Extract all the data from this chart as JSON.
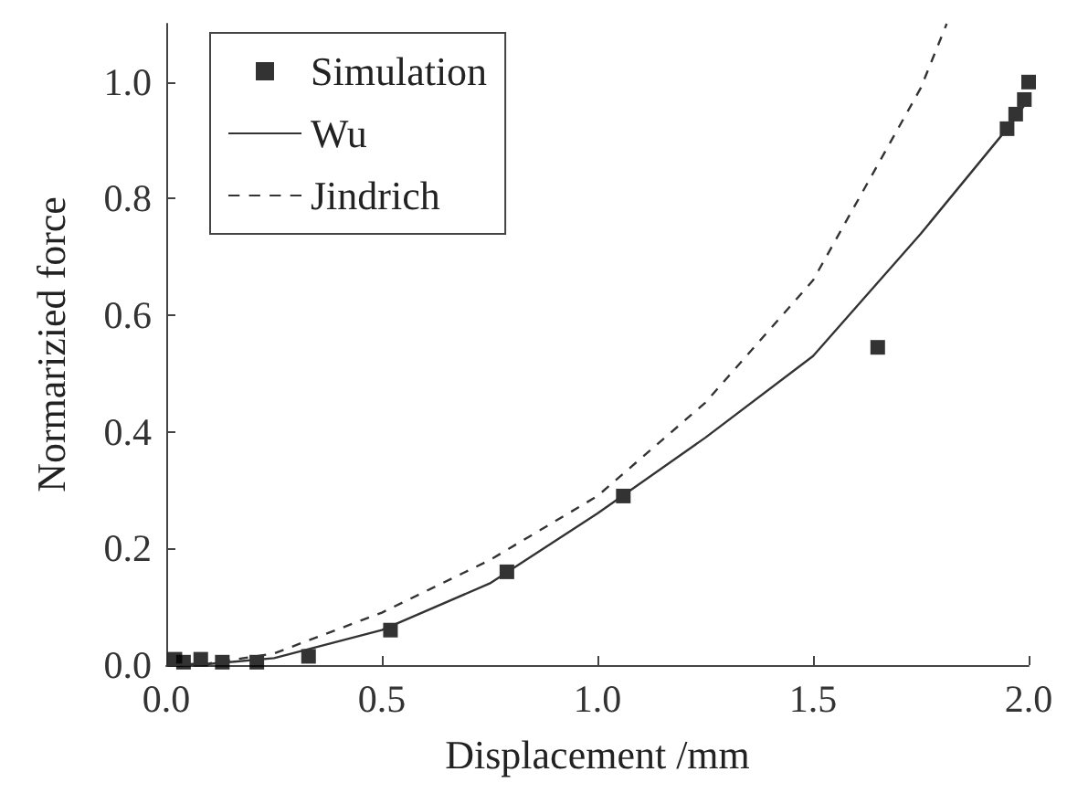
{
  "chart_data": {
    "type": "scatter",
    "xlabel": "Displacement /mm",
    "ylabel": "Normarizied force",
    "xlim": [
      0,
      2.0
    ],
    "xticks": [
      {
        "value": 0,
        "label": "0.0"
      },
      0.5,
      {
        "value": 1,
        "label": "1.0"
      },
      1.5,
      {
        "value": 2,
        "label": "2.0"
      }
    ],
    "ylim": [
      0,
      1.1
    ],
    "yticks": [
      {
        "value": 0,
        "label": "0.0"
      },
      0.2,
      0.4,
      0.6,
      0.8,
      {
        "value": 1,
        "label": "1.0"
      }
    ],
    "grid": false,
    "legend": "top left",
    "series": [
      {
        "name": "Simulation",
        "marker": "square",
        "color": "#000000",
        "x": [
          0.02,
          0.04,
          0.08,
          0.13,
          0.21,
          0.33,
          0.52,
          0.79,
          1.06,
          1.65,
          1.95,
          1.97,
          1.99,
          2.0
        ],
        "values": [
          0.01,
          0.005,
          0.01,
          0.005,
          0.005,
          0.015,
          0.06,
          0.16,
          0.29,
          0.545,
          0.92,
          0.945,
          0.97,
          1.0
        ]
      },
      {
        "name": "Wu",
        "type": "line",
        "line_style": "solid",
        "marker": "none",
        "color": "#333333",
        "x": [
          0,
          0.1,
          0.25,
          0.5,
          0.75,
          1.0,
          1.25,
          1.5,
          1.75,
          1.95,
          2.0
        ],
        "values": [
          0,
          0.002,
          0.012,
          0.06,
          0.14,
          0.26,
          0.39,
          0.53,
          0.74,
          0.92,
          0.97
        ]
      },
      {
        "name": "Jindrich",
        "type": "line",
        "line_style": "dashed",
        "marker": "none",
        "color": "#333333",
        "x": [
          0,
          0.1,
          0.25,
          0.5,
          0.75,
          1.0,
          1.25,
          1.5,
          1.75,
          1.81
        ],
        "values": [
          0,
          0.003,
          0.02,
          0.09,
          0.18,
          0.29,
          0.45,
          0.66,
          0.99,
          1.1
        ]
      }
    ]
  }
}
